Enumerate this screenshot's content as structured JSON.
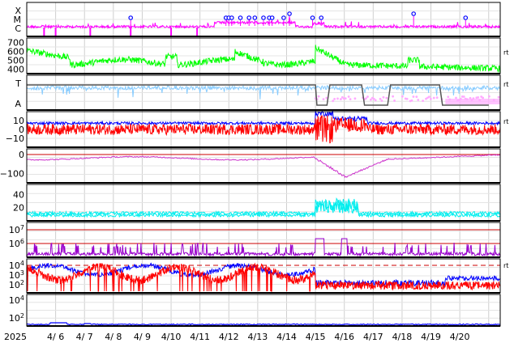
{
  "chart_data": {
    "type": "line",
    "x_start": "2025-04-05",
    "x_end": "2025-04-21",
    "year_label": "2025",
    "date_ticks": [
      "4/ 6",
      "4/ 7",
      "4/ 8",
      "4/ 9",
      "4/10",
      "4/11",
      "4/12",
      "4/13",
      "4/14",
      "4/15",
      "4/16",
      "4/17",
      "4/18",
      "4/19",
      "4/20"
    ],
    "grid": true,
    "colors": {
      "xray": "#ff00ff",
      "wind_speed": "#00ff00",
      "elec": "#88ccff",
      "elec_alt": "#ffaaff",
      "bz": "#ff0000",
      "bt": "#0000ff",
      "kp_like": "#cc33cc",
      "density": "#00eeee",
      "proton": "#9900cc",
      "particle_red": "#ff0000",
      "particle_blue": "#0000ff",
      "flare_marker": "#0000ff",
      "threshold": "#cc0000",
      "step": "#555555"
    },
    "panels": [
      {
        "name": "xray-flux",
        "yticks": [
          "X",
          "M",
          "C"
        ],
        "flare_days": [
          8.6,
          11.9,
          12.0,
          12.1,
          12.4,
          12.7,
          12.9,
          13.2,
          13.4,
          13.5,
          13.9,
          14.1,
          14.9,
          15.2,
          18.4,
          20.2
        ]
      },
      {
        "name": "solar-wind-speed",
        "yticks": [
          "700",
          "600",
          "500",
          "400"
        ],
        "ylim": [
          350,
          750
        ],
        "flag": "rt"
      },
      {
        "name": "electron-class",
        "yticks": [
          "T",
          "A"
        ],
        "flag": "rt",
        "step_x": [
          5.0,
          15.0,
          15.05,
          15.4,
          15.5,
          16.6,
          16.7,
          17.5,
          17.6,
          19.3,
          19.4,
          21.0
        ],
        "step_y": [
          1,
          1,
          0,
          0,
          1,
          1,
          0,
          0,
          1,
          1,
          0,
          0
        ]
      },
      {
        "name": "imf-bz-bt",
        "yticks": [
          "10",
          "0",
          "−10"
        ],
        "ylim": [
          -20,
          20
        ],
        "flag": "rt"
      },
      {
        "name": "dst-index",
        "yticks": [
          "0",
          "−100"
        ],
        "ylim": [
          -150,
          30
        ]
      },
      {
        "name": "proton-density",
        "yticks": [
          "40",
          "20"
        ],
        "ylim": [
          0,
          55
        ]
      },
      {
        "name": "proton-flux",
        "ytick_bases": [
          "10",
          "10"
        ],
        "ytick_exps": [
          "7",
          "6"
        ],
        "flag": ""
      },
      {
        "name": "electron-flux",
        "ytick_bases": [
          "10",
          "10",
          "10"
        ],
        "ytick_exps": [
          "4",
          "3",
          "2"
        ],
        "flag": "rt"
      },
      {
        "name": "cosmic-ray",
        "ytick_bases": [
          "10",
          "10"
        ],
        "ytick_exps": [
          "4",
          "2"
        ]
      }
    ]
  }
}
